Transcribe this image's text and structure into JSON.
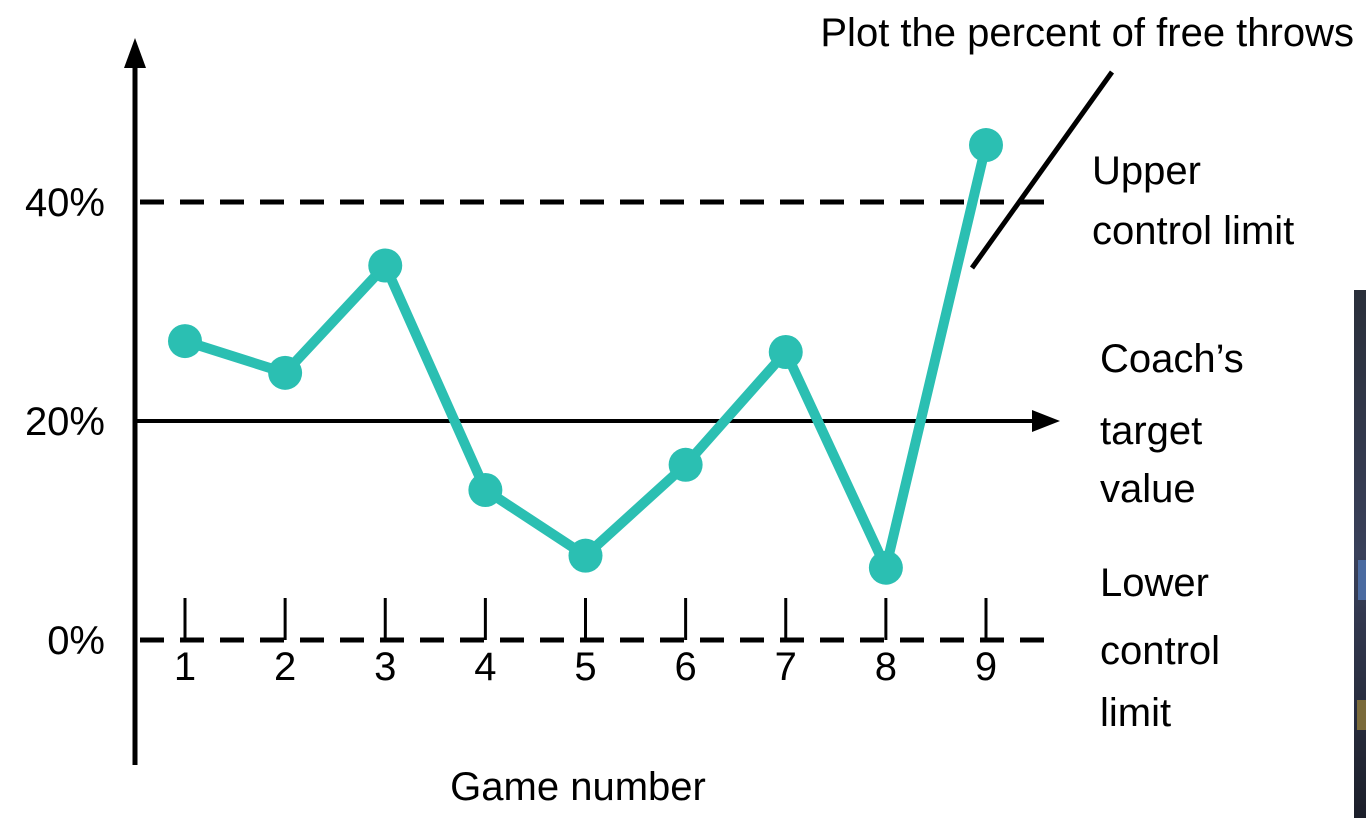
{
  "annotation_top": "Plot the percent of free throws",
  "labels": {
    "upper_line1": "Upper",
    "upper_line2": "control limit",
    "target_line1": "Coach’s",
    "target_line2": "target",
    "target_line3": "value",
    "lower_line1": "Lower",
    "lower_line2": "control",
    "lower_line3": "limit"
  },
  "colors": {
    "series": "#2bbfb2",
    "axes": "#000000"
  },
  "chart_data": {
    "type": "line",
    "xlabel": "Game number",
    "ylabel": "",
    "x": [
      1,
      2,
      3,
      4,
      5,
      6,
      7,
      8,
      9
    ],
    "x_tick_labels": [
      "1",
      "2",
      "3",
      "4",
      "5",
      "6",
      "7",
      "8",
      "9"
    ],
    "y_tick_labels": [
      "0%",
      "20%",
      "40%"
    ],
    "y_tick_values": [
      0,
      20,
      40
    ],
    "series": [
      {
        "values": [
          27.3,
          24.4,
          34.2,
          13.7,
          7.7,
          16.0,
          26.3,
          6.6,
          45.2
        ]
      }
    ],
    "upper_control_limit": 40,
    "target_value": 20,
    "lower_control_limit": 0,
    "ylim": [
      -11,
      54
    ]
  }
}
